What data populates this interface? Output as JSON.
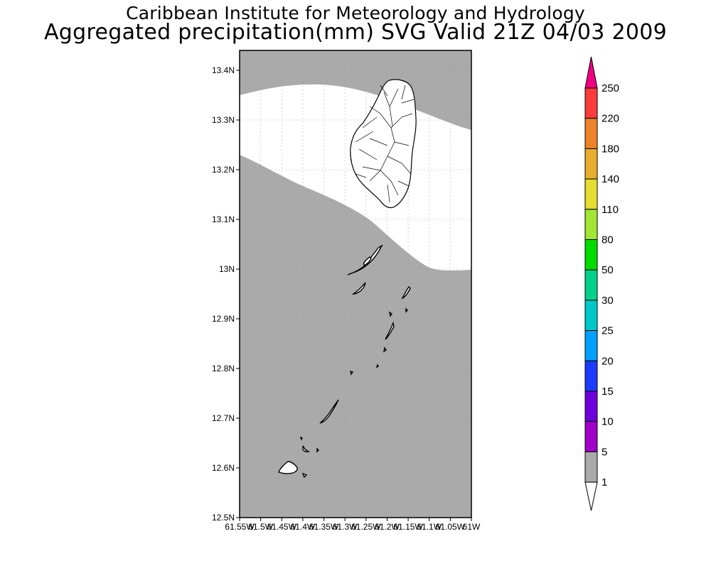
{
  "header": {
    "title": "Caribbean Institute for Meteorology and Hydrology",
    "subtitle": "Aggregated precipitation(mm) SVG Valid 21Z 04/03 2009"
  },
  "map": {
    "lat_ticks": [
      "13.4N",
      "13.3N",
      "13.2N",
      "13.1N",
      "13N",
      "12.9N",
      "12.8N",
      "12.7N",
      "12.6N",
      "12.5N"
    ],
    "lon_ticks": [
      "61.55W",
      "61.5W",
      "61.45W",
      "61.4W",
      "61.35W",
      "61.3W",
      "61.25W",
      "61.2W",
      "61.15W",
      "61.1W",
      "61.05W",
      "61W"
    ],
    "lat_range": [
      12.5,
      13.44
    ],
    "lon_range": [
      -61.55,
      -61.0
    ],
    "grid": "dotted",
    "colors": {
      "land_outline": "#000000",
      "no_precip": "#ffffff",
      "precip_1_5": "#aaaaaa"
    }
  },
  "colorbar": {
    "labels": [
      "1",
      "5",
      "10",
      "15",
      "20",
      "25",
      "30",
      "50",
      "80",
      "110",
      "140",
      "180",
      "220",
      "250"
    ],
    "colors": [
      "#aaaaaa",
      "#a000c8",
      "#6e00dc",
      "#1e3cff",
      "#00a0ff",
      "#00c8c8",
      "#00d28c",
      "#00dc00",
      "#a0e632",
      "#e6dc32",
      "#e6af2d",
      "#f08228",
      "#fa3c3c",
      "#f00082"
    ],
    "below_color": "#ffffff",
    "above_color": "#f00082"
  }
}
